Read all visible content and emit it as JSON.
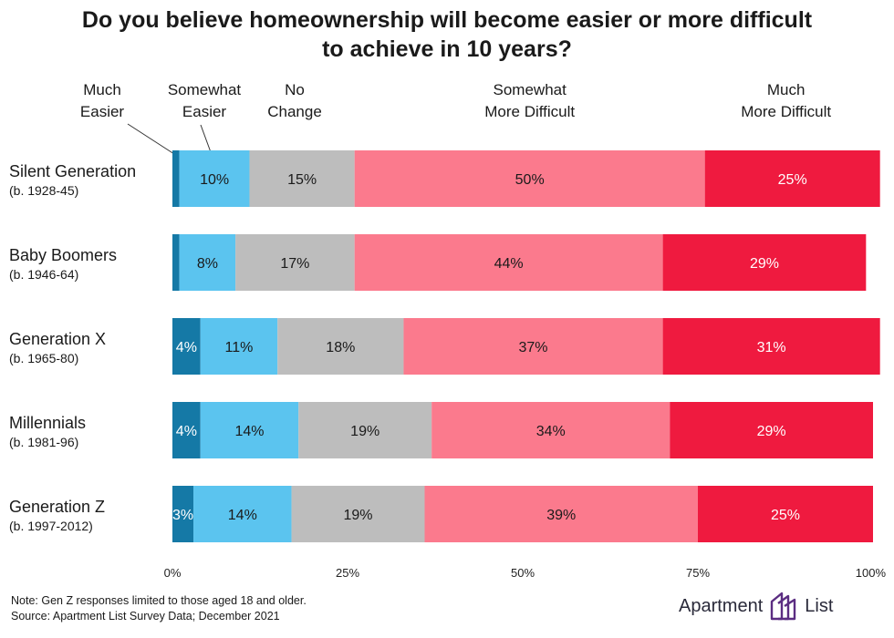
{
  "chart_data": {
    "type": "bar",
    "orientation": "horizontal",
    "stacked": true,
    "title": "Do you believe homeownership will become easier or more difficult to achieve in 10 years?",
    "title_lines": [
      "Do you believe homeownership will become easier or more difficult",
      "to achieve in 10 years?"
    ],
    "categories": [
      {
        "name": "Silent Generation",
        "sub": "(b. 1928-45)"
      },
      {
        "name": "Baby Boomers",
        "sub": "(b. 1946-64)"
      },
      {
        "name": "Generation X",
        "sub": "(b. 1965-80)"
      },
      {
        "name": "Millennials",
        "sub": "(b. 1981-96)"
      },
      {
        "name": "Generation Z",
        "sub": "(b. 1997-2012)"
      }
    ],
    "series": [
      {
        "name": "Much Easier",
        "label_lines": [
          "Much",
          "Easier"
        ],
        "color": "#1579a6",
        "text_color": "#ffffff",
        "values": [
          1,
          1,
          4,
          4,
          3
        ],
        "labels": [
          "",
          "",
          "4%",
          "4%",
          "3%"
        ]
      },
      {
        "name": "Somewhat Easier",
        "label_lines": [
          "Somewhat",
          "Easier"
        ],
        "color": "#5bc4ef",
        "text_color": "#1a1a1a",
        "values": [
          10,
          8,
          11,
          14,
          14
        ],
        "labels": [
          "10%",
          "8%",
          "11%",
          "14%",
          "14%"
        ]
      },
      {
        "name": "No Change",
        "label_lines": [
          "No",
          "Change"
        ],
        "color": "#bdbdbd",
        "text_color": "#1a1a1a",
        "values": [
          15,
          17,
          18,
          19,
          19
        ],
        "labels": [
          "15%",
          "17%",
          "18%",
          "19%",
          "19%"
        ]
      },
      {
        "name": "Somewhat More Difficult",
        "label_lines": [
          "Somewhat",
          "More Difficult"
        ],
        "color": "#fb7a8d",
        "text_color": "#1a1a1a",
        "values": [
          50,
          44,
          37,
          34,
          39
        ],
        "labels": [
          "50%",
          "44%",
          "37%",
          "34%",
          "39%"
        ]
      },
      {
        "name": "Much More Difficult",
        "label_lines": [
          "Much",
          "More Difficult"
        ],
        "color": "#ef1a3f",
        "text_color": "#ffffff",
        "values": [
          25,
          29,
          31,
          29,
          25
        ],
        "labels": [
          "25%",
          "29%",
          "31%",
          "29%",
          "25%"
        ]
      }
    ],
    "xlim": [
      0,
      100
    ],
    "x_ticks": [
      "0%",
      "25%",
      "50%",
      "75%",
      "100%"
    ],
    "grid": false,
    "legend": "top"
  },
  "notes": {
    "line1": "Note: Gen Z responses limited to those aged 18 and older.",
    "line2": "Source: Apartment List Survey Data; December 2021"
  },
  "brand": {
    "word1": "Apartment",
    "word2": "List",
    "logo_icon": "apartment-list-logo-icon",
    "color": "#5b2d82"
  }
}
